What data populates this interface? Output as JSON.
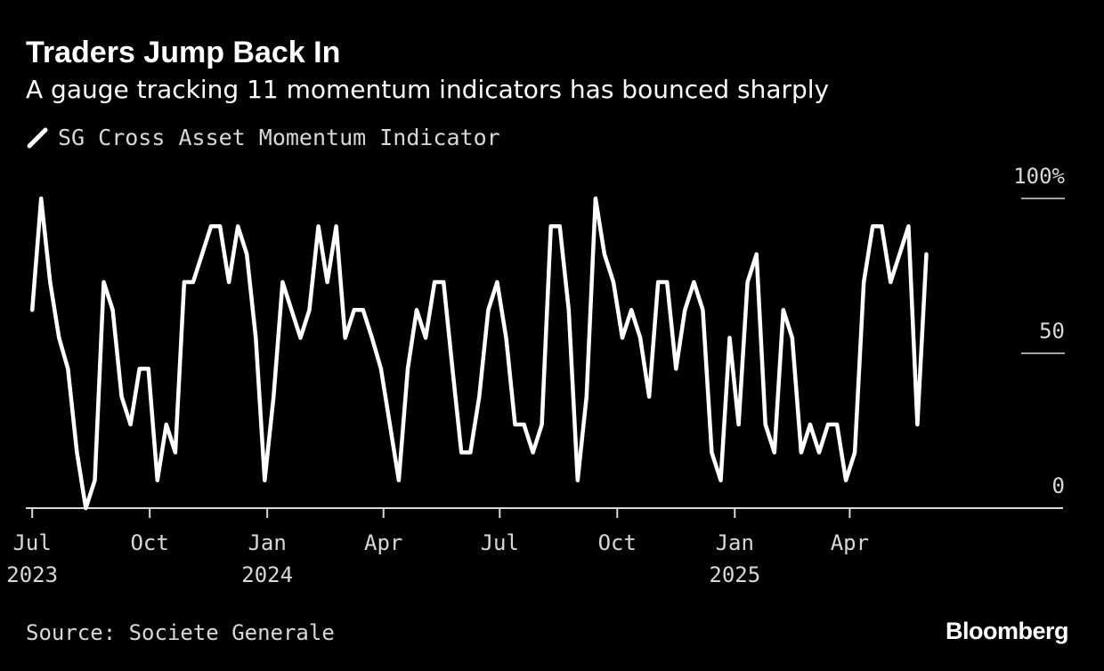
{
  "header": {
    "title": "Traders Jump Back In",
    "subtitle": "A gauge tracking 11 momentum indicators has bounced sharply"
  },
  "footer": {
    "source": "Source: Societe Generale",
    "brand": "Bloomberg"
  },
  "colors": {
    "background": "#000000",
    "line": "#ffffff",
    "text_muted": "#d8d8d8"
  },
  "chart_data": {
    "type": "line",
    "title": "Traders Jump Back In",
    "subtitle": "A gauge tracking 11 momentum indicators has bounced sharply",
    "legend_position": "top-left",
    "grid": false,
    "y_axis": {
      "position": "right",
      "ylim": [
        0,
        100
      ],
      "ticks": [
        {
          "value": 100,
          "label": "100%"
        },
        {
          "value": 50,
          "label": "50"
        },
        {
          "value": 0,
          "label": "0"
        }
      ]
    },
    "x_axis": {
      "xlim": [
        "2023-06-26",
        "2025-09-15"
      ],
      "ticks": [
        {
          "date": "2023-07-01",
          "label": "Jul",
          "label2": "2023"
        },
        {
          "date": "2023-10-01",
          "label": "Oct",
          "label2": ""
        },
        {
          "date": "2024-01-01",
          "label": "Jan",
          "label2": "2024"
        },
        {
          "date": "2024-04-01",
          "label": "Apr",
          "label2": ""
        },
        {
          "date": "2024-07-01",
          "label": "Jul",
          "label2": ""
        },
        {
          "date": "2024-10-01",
          "label": "Oct",
          "label2": ""
        },
        {
          "date": "2025-01-01",
          "label": "Jan",
          "label2": "2025"
        },
        {
          "date": "2025-04-01",
          "label": "Apr",
          "label2": ""
        }
      ]
    },
    "series": [
      {
        "name": "SG Cross Asset Momentum Indicator",
        "points": [
          [
            "2023-07-01",
            64
          ],
          [
            "2023-07-08",
            100
          ],
          [
            "2023-07-15",
            73
          ],
          [
            "2023-07-22",
            55
          ],
          [
            "2023-07-29",
            45
          ],
          [
            "2023-08-05",
            18
          ],
          [
            "2023-08-12",
            0
          ],
          [
            "2023-08-19",
            9
          ],
          [
            "2023-08-26",
            73
          ],
          [
            "2023-09-02",
            64
          ],
          [
            "2023-09-09",
            36
          ],
          [
            "2023-09-16",
            27
          ],
          [
            "2023-09-23",
            45
          ],
          [
            "2023-09-30",
            45
          ],
          [
            "2023-10-07",
            9
          ],
          [
            "2023-10-14",
            27
          ],
          [
            "2023-10-21",
            18
          ],
          [
            "2023-10-28",
            73
          ],
          [
            "2023-11-04",
            73
          ],
          [
            "2023-11-11",
            82
          ],
          [
            "2023-11-18",
            91
          ],
          [
            "2023-11-25",
            91
          ],
          [
            "2023-12-02",
            73
          ],
          [
            "2023-12-09",
            91
          ],
          [
            "2023-12-16",
            82
          ],
          [
            "2023-12-23",
            55
          ],
          [
            "2023-12-30",
            9
          ],
          [
            "2024-01-06",
            36
          ],
          [
            "2024-01-13",
            73
          ],
          [
            "2024-01-20",
            64
          ],
          [
            "2024-01-27",
            55
          ],
          [
            "2024-02-03",
            64
          ],
          [
            "2024-02-10",
            91
          ],
          [
            "2024-02-17",
            73
          ],
          [
            "2024-02-24",
            91
          ],
          [
            "2024-03-02",
            55
          ],
          [
            "2024-03-09",
            64
          ],
          [
            "2024-03-16",
            64
          ],
          [
            "2024-03-23",
            55
          ],
          [
            "2024-03-30",
            45
          ],
          [
            "2024-04-06",
            27
          ],
          [
            "2024-04-13",
            9
          ],
          [
            "2024-04-20",
            45
          ],
          [
            "2024-04-27",
            64
          ],
          [
            "2024-05-04",
            55
          ],
          [
            "2024-05-11",
            73
          ],
          [
            "2024-05-18",
            73
          ],
          [
            "2024-05-25",
            45
          ],
          [
            "2024-06-01",
            18
          ],
          [
            "2024-06-08",
            18
          ],
          [
            "2024-06-15",
            36
          ],
          [
            "2024-06-22",
            64
          ],
          [
            "2024-06-29",
            73
          ],
          [
            "2024-07-06",
            55
          ],
          [
            "2024-07-13",
            27
          ],
          [
            "2024-07-20",
            27
          ],
          [
            "2024-07-27",
            18
          ],
          [
            "2024-08-03",
            27
          ],
          [
            "2024-08-10",
            91
          ],
          [
            "2024-08-17",
            91
          ],
          [
            "2024-08-24",
            64
          ],
          [
            "2024-08-31",
            9
          ],
          [
            "2024-09-07",
            36
          ],
          [
            "2024-09-14",
            100
          ],
          [
            "2024-09-21",
            82
          ],
          [
            "2024-09-28",
            73
          ],
          [
            "2024-10-05",
            55
          ],
          [
            "2024-10-12",
            64
          ],
          [
            "2024-10-19",
            55
          ],
          [
            "2024-10-26",
            36
          ],
          [
            "2024-11-02",
            73
          ],
          [
            "2024-11-09",
            73
          ],
          [
            "2024-11-16",
            45
          ],
          [
            "2024-11-23",
            64
          ],
          [
            "2024-11-30",
            73
          ],
          [
            "2024-12-07",
            64
          ],
          [
            "2024-12-14",
            18
          ],
          [
            "2024-12-21",
            9
          ],
          [
            "2024-12-28",
            55
          ],
          [
            "2025-01-04",
            27
          ],
          [
            "2025-01-11",
            73
          ],
          [
            "2025-01-18",
            82
          ],
          [
            "2025-01-25",
            27
          ],
          [
            "2025-02-01",
            18
          ],
          [
            "2025-02-08",
            64
          ],
          [
            "2025-02-15",
            55
          ],
          [
            "2025-02-22",
            18
          ],
          [
            "2025-03-01",
            27
          ],
          [
            "2025-03-08",
            18
          ],
          [
            "2025-03-15",
            27
          ],
          [
            "2025-03-22",
            27
          ],
          [
            "2025-03-29",
            9
          ],
          [
            "2025-04-05",
            18
          ],
          [
            "2025-04-12",
            73
          ],
          [
            "2025-04-19",
            91
          ],
          [
            "2025-04-26",
            91
          ],
          [
            "2025-05-03",
            73
          ],
          [
            "2025-05-10",
            82
          ],
          [
            "2025-05-17",
            91
          ],
          [
            "2025-05-24",
            27
          ],
          [
            "2025-05-31",
            82
          ]
        ]
      }
    ]
  }
}
